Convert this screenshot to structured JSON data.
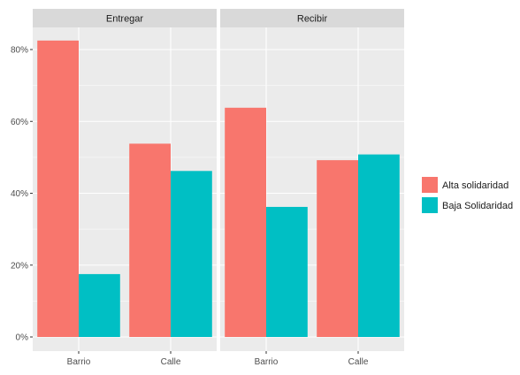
{
  "chart_data": {
    "type": "bar",
    "facets": [
      "Entregar",
      "Recibir"
    ],
    "categories": [
      "Barrio",
      "Calle"
    ],
    "series": [
      {
        "name": "Alta solidaridad",
        "color": "#F8766D",
        "values": {
          "Entregar": [
            82.5,
            53.8
          ],
          "Recibir": [
            63.8,
            49.2
          ]
        }
      },
      {
        "name": "Baja Solidaridad",
        "color": "#00BFC4",
        "values": {
          "Entregar": [
            17.5,
            46.2
          ],
          "Recibir": [
            36.2,
            50.8
          ]
        }
      }
    ],
    "y_ticks": [
      0,
      20,
      40,
      60,
      80
    ],
    "y_tick_labels": [
      "0%",
      "20%",
      "40%",
      "60%",
      "80%"
    ],
    "ylim": [
      0,
      86
    ],
    "grid": true,
    "legend_position": "right",
    "panel_background": "#EBEBEB",
    "strip_background": "#D9D9D9"
  }
}
